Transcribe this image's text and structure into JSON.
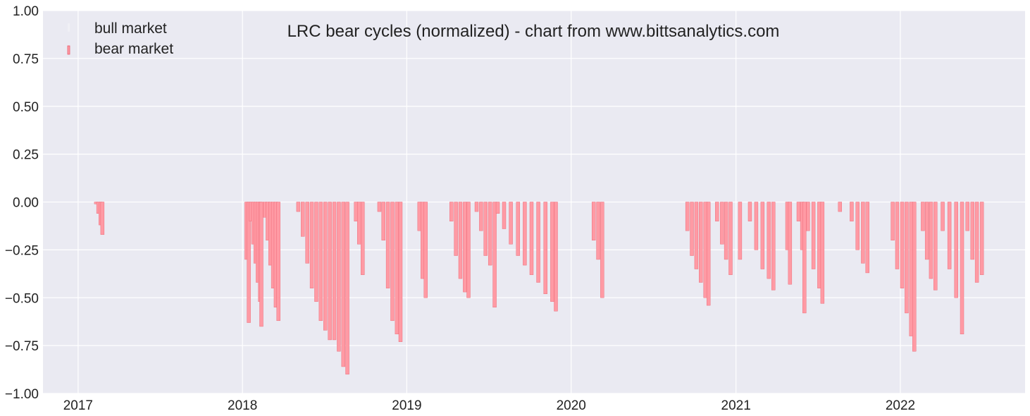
{
  "chart_data": {
    "type": "bar",
    "title": "LRC bear cycles (normalized)  - chart from www.bittsanalytics.com",
    "xlabel": "",
    "ylabel": "",
    "ylim": [
      -1.0,
      1.0
    ],
    "xlim": [
      "2016-10-15",
      "2022-10-05"
    ],
    "y_ticks": [
      -1.0,
      -0.75,
      -0.5,
      -0.25,
      0.0,
      0.25,
      0.5,
      0.75,
      1.0
    ],
    "y_tick_labels": [
      "−1.00",
      "−0.75",
      "−0.50",
      "−0.25",
      "0.00",
      "0.25",
      "0.50",
      "0.75",
      "1.00"
    ],
    "x_ticks": [
      "2017-01-01",
      "2018-01-01",
      "2019-01-01",
      "2020-01-01",
      "2021-01-01",
      "2022-01-01"
    ],
    "x_tick_labels": [
      "2017",
      "2018",
      "2019",
      "2020",
      "2021",
      "2022"
    ],
    "grid": true,
    "legend_position": "top-left",
    "series": [
      {
        "name": "bull market",
        "color": "#f0f0f5",
        "values": []
      },
      {
        "name": "bear market",
        "color": "#ff9aa4",
        "edge_color": "#e8606e",
        "values": [
          [
            "2017-02-10",
            -0.01
          ],
          [
            "2017-02-15",
            -0.06
          ],
          [
            "2017-02-20",
            -0.12
          ],
          [
            "2017-02-24",
            -0.17
          ],
          [
            "2018-01-10",
            -0.3
          ],
          [
            "2018-01-15",
            -0.63
          ],
          [
            "2018-01-20",
            -0.1
          ],
          [
            "2018-01-25",
            -0.22
          ],
          [
            "2018-01-30",
            -0.32
          ],
          [
            "2018-02-04",
            -0.42
          ],
          [
            "2018-02-09",
            -0.52
          ],
          [
            "2018-02-12",
            -0.65
          ],
          [
            "2018-02-20",
            -0.08
          ],
          [
            "2018-02-26",
            -0.2
          ],
          [
            "2018-03-04",
            -0.33
          ],
          [
            "2018-03-10",
            -0.45
          ],
          [
            "2018-03-16",
            -0.55
          ],
          [
            "2018-03-22",
            -0.62
          ],
          [
            "2018-05-05",
            -0.05
          ],
          [
            "2018-05-15",
            -0.18
          ],
          [
            "2018-05-25",
            -0.32
          ],
          [
            "2018-06-04",
            -0.45
          ],
          [
            "2018-06-14",
            -0.52
          ],
          [
            "2018-06-24",
            -0.62
          ],
          [
            "2018-07-04",
            -0.67
          ],
          [
            "2018-07-14",
            -0.72
          ],
          [
            "2018-07-24",
            -0.72
          ],
          [
            "2018-08-03",
            -0.78
          ],
          [
            "2018-08-13",
            -0.86
          ],
          [
            "2018-08-22",
            -0.9
          ],
          [
            "2018-09-10",
            -0.1
          ],
          [
            "2018-09-17",
            -0.22
          ],
          [
            "2018-09-25",
            -0.38
          ],
          [
            "2018-11-01",
            -0.05
          ],
          [
            "2018-11-10",
            -0.2
          ],
          [
            "2018-11-20",
            -0.45
          ],
          [
            "2018-11-30",
            -0.62
          ],
          [
            "2018-12-10",
            -0.69
          ],
          [
            "2018-12-18",
            -0.73
          ],
          [
            "2019-01-29",
            -0.15
          ],
          [
            "2019-02-05",
            -0.4
          ],
          [
            "2019-02-12",
            -0.5
          ],
          [
            "2019-04-10",
            -0.1
          ],
          [
            "2019-04-20",
            -0.28
          ],
          [
            "2019-04-30",
            -0.4
          ],
          [
            "2019-05-10",
            -0.47
          ],
          [
            "2019-05-18",
            -0.5
          ],
          [
            "2019-06-05",
            -0.05
          ],
          [
            "2019-06-15",
            -0.15
          ],
          [
            "2019-06-25",
            -0.28
          ],
          [
            "2019-07-05",
            -0.33
          ],
          [
            "2019-07-15",
            -0.55
          ],
          [
            "2019-07-22",
            -0.06
          ],
          [
            "2019-08-05",
            -0.14
          ],
          [
            "2019-08-20",
            -0.22
          ],
          [
            "2019-09-05",
            -0.28
          ],
          [
            "2019-09-20",
            -0.33
          ],
          [
            "2019-10-05",
            -0.38
          ],
          [
            "2019-10-20",
            -0.42
          ],
          [
            "2019-11-05",
            -0.48
          ],
          [
            "2019-11-20",
            -0.52
          ],
          [
            "2019-11-28",
            -0.57
          ],
          [
            "2020-02-20",
            -0.2
          ],
          [
            "2020-03-01",
            -0.3
          ],
          [
            "2020-03-10",
            -0.5
          ],
          [
            "2020-09-15",
            -0.15
          ],
          [
            "2020-09-25",
            -0.28
          ],
          [
            "2020-10-05",
            -0.35
          ],
          [
            "2020-10-15",
            -0.42
          ],
          [
            "2020-10-25",
            -0.5
          ],
          [
            "2020-11-01",
            -0.54
          ],
          [
            "2020-11-20",
            -0.1
          ],
          [
            "2020-12-01",
            -0.22
          ],
          [
            "2020-12-10",
            -0.3
          ],
          [
            "2020-12-20",
            -0.38
          ],
          [
            "2021-01-10",
            -0.3
          ],
          [
            "2021-02-01",
            -0.1
          ],
          [
            "2021-02-15",
            -0.25
          ],
          [
            "2021-03-01",
            -0.35
          ],
          [
            "2021-03-15",
            -0.4
          ],
          [
            "2021-03-25",
            -0.46
          ],
          [
            "2021-04-25",
            -0.25
          ],
          [
            "2021-05-01",
            -0.43
          ],
          [
            "2021-05-20",
            -0.1
          ],
          [
            "2021-05-28",
            -0.25
          ],
          [
            "2021-06-02",
            -0.58
          ],
          [
            "2021-06-10",
            -0.15
          ],
          [
            "2021-06-22",
            -0.35
          ],
          [
            "2021-07-05",
            -0.45
          ],
          [
            "2021-07-12",
            -0.53
          ],
          [
            "2021-08-20",
            -0.05
          ],
          [
            "2021-09-15",
            -0.1
          ],
          [
            "2021-09-28",
            -0.25
          ],
          [
            "2021-10-10",
            -0.32
          ],
          [
            "2021-10-20",
            -0.37
          ],
          [
            "2021-12-15",
            -0.2
          ],
          [
            "2021-12-25",
            -0.35
          ],
          [
            "2022-01-05",
            -0.45
          ],
          [
            "2022-01-15",
            -0.58
          ],
          [
            "2022-01-25",
            -0.7
          ],
          [
            "2022-02-01",
            -0.78
          ],
          [
            "2022-02-20",
            -0.15
          ],
          [
            "2022-03-01",
            -0.3
          ],
          [
            "2022-03-10",
            -0.4
          ],
          [
            "2022-03-20",
            -0.46
          ],
          [
            "2022-04-05",
            -0.15
          ],
          [
            "2022-04-20",
            -0.35
          ],
          [
            "2022-05-05",
            -0.5
          ],
          [
            "2022-05-18",
            -0.69
          ],
          [
            "2022-05-30",
            -0.15
          ],
          [
            "2022-06-10",
            -0.3
          ],
          [
            "2022-06-20",
            -0.42
          ],
          [
            "2022-07-01",
            -0.38
          ]
        ]
      }
    ]
  }
}
